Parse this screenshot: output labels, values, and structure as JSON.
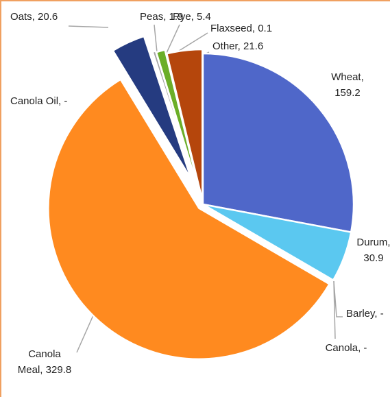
{
  "chart_data": {
    "type": "pie",
    "values": [
      159.2,
      30.9,
      0,
      0,
      329.8,
      0,
      20.6,
      1.9,
      5.4,
      0.1,
      21.6
    ],
    "value_labels": [
      "Wheat, 159.2",
      "Durum, 30.9",
      "Barley, -",
      "Canola, -",
      "Canola Meal, 329.8",
      "Canola Oil, -",
      "Oats, 20.6",
      "Peas, 1.9",
      "Rye, 5.4",
      "Flaxseed, 0.1",
      "Other, 21.6"
    ],
    "colors": [
      "#4f67c9",
      "#5bc8f0",
      "#a5a5a5",
      "#ffc000",
      "#ff8a1f",
      "#70ad47",
      "#253b80",
      "#a5a5a5",
      "#6bae28",
      "#2f5597",
      "#b5460c"
    ]
  }
}
